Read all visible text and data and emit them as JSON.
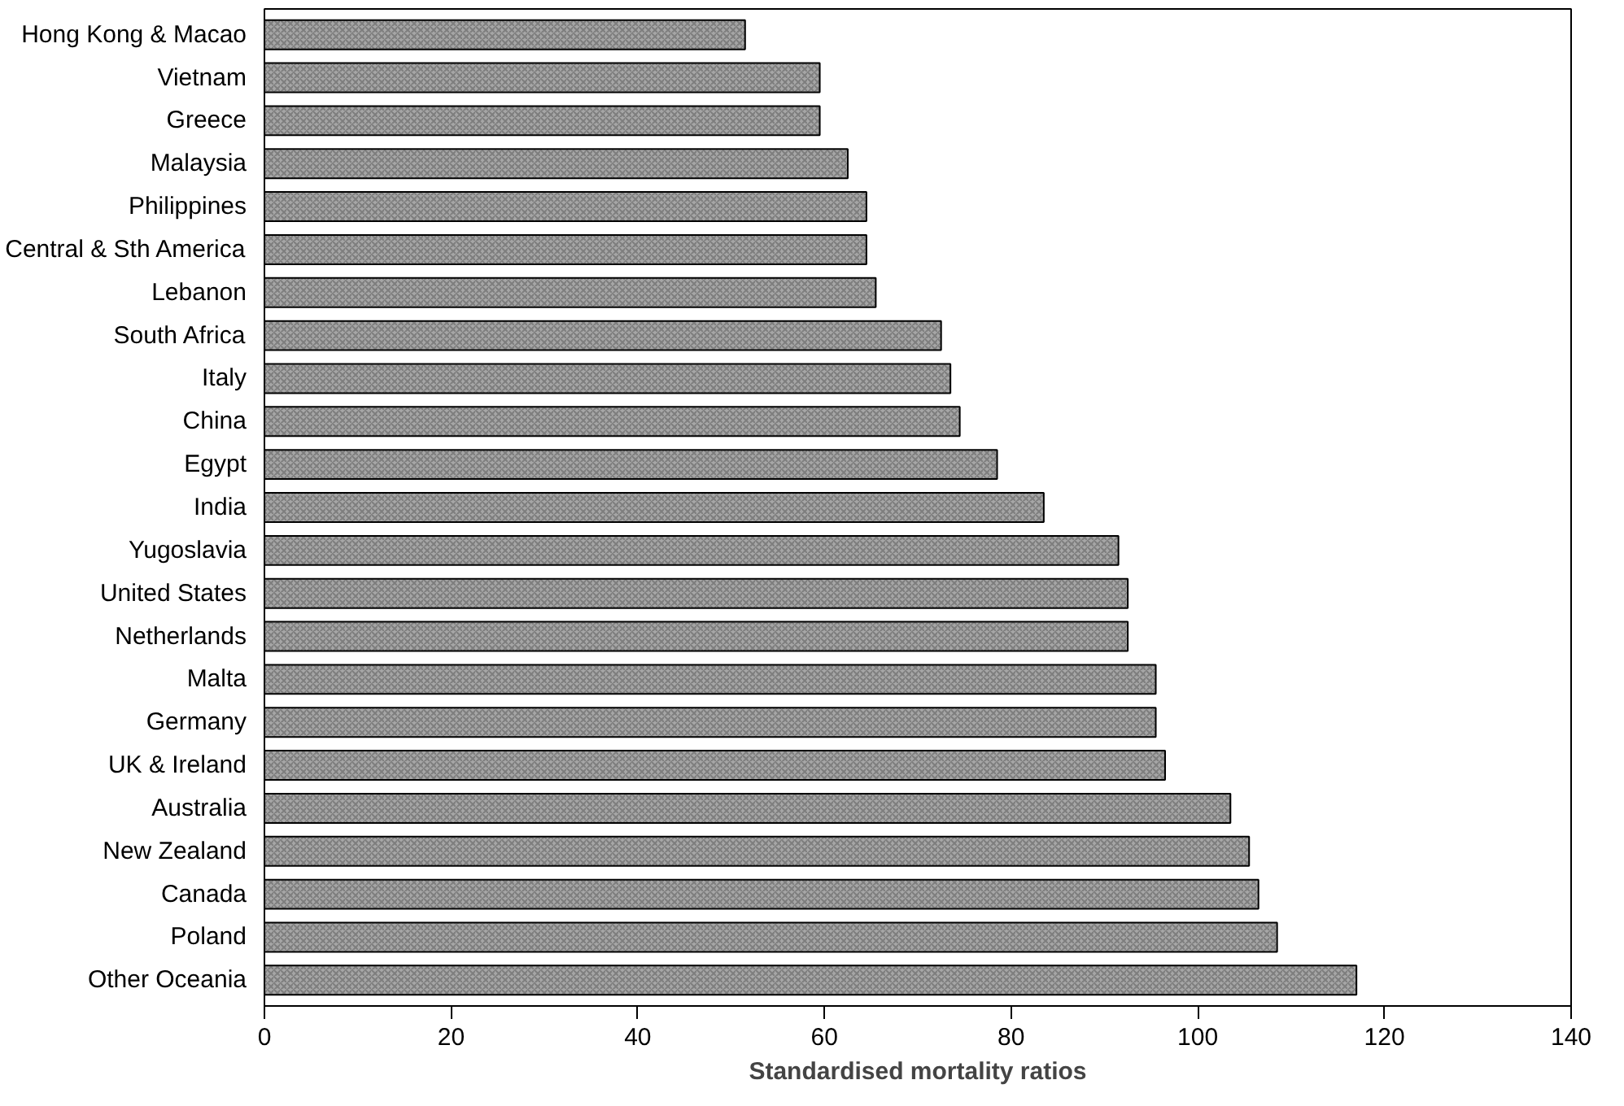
{
  "chart_data": {
    "type": "bar",
    "orientation": "horizontal",
    "xlabel": "Standardised mortality ratios",
    "categories": [
      "Hong Kong & Macao",
      "Vietnam",
      "Greece",
      "Malaysia",
      "Philippines",
      "Central & Sth America",
      "Lebanon",
      "South Africa",
      "Italy",
      "China",
      "Egypt",
      "India",
      "Yugoslavia",
      "United States",
      "Netherlands",
      "Malta",
      "Germany",
      "UK & Ireland",
      "Australia",
      "New Zealand",
      "Canada",
      "Poland",
      "Other Oceania"
    ],
    "values": [
      51.5,
      59.5,
      59.5,
      62.5,
      64.5,
      64.5,
      65.5,
      72.5,
      73.5,
      74.5,
      78.5,
      83.5,
      91.5,
      92.5,
      92.5,
      95.5,
      95.5,
      96.5,
      103.5,
      105.5,
      106.5,
      108.5,
      117
    ],
    "color": "#a6a6a6",
    "xlim": [
      0,
      140
    ],
    "xticks": [
      0,
      20,
      40,
      60,
      80,
      100,
      120,
      140
    ],
    "grid": false
  }
}
